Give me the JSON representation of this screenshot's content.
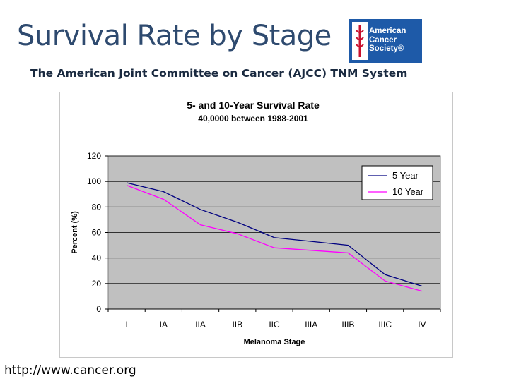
{
  "header": {
    "title": "Survival Rate by Stage",
    "subtitle": "The American Joint Committee on Cancer (AJCC) TNM System"
  },
  "logo": {
    "line1": "American",
    "line2": "Cancer",
    "line3": "Society®",
    "color": "#1e5aa8",
    "mark_color": "#c8102e"
  },
  "footer": {
    "url": "http://www.cancer.org"
  },
  "chart_data": {
    "type": "line",
    "title": "5- and 10-Year Survival Rate",
    "subtitle": "40,0000  between 1988-2001",
    "xlabel": "Melanoma Stage",
    "ylabel": "Percent (%)",
    "categories": [
      "I",
      "IA",
      "IIA",
      "IIB",
      "IIC",
      "IIIA",
      "IIIB",
      "IIIC",
      "IV"
    ],
    "ylim": [
      0,
      120
    ],
    "yticks": [
      0,
      20,
      40,
      60,
      80,
      100,
      120
    ],
    "grid": true,
    "legend_position": "top-right",
    "plot_background": "#c0c0c0",
    "series": [
      {
        "name": "5 Year",
        "color": "#000080",
        "values": [
          99,
          92,
          78,
          68,
          56,
          53,
          50,
          27,
          18
        ]
      },
      {
        "name": "10 Year",
        "color": "#ff00ff",
        "values": [
          97,
          86,
          66,
          59,
          48,
          46,
          44,
          22,
          14
        ]
      }
    ]
  }
}
